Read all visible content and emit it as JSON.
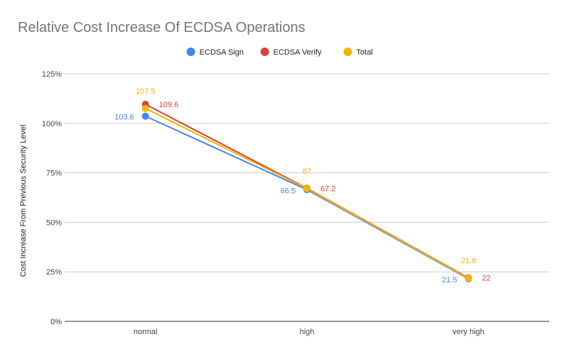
{
  "chart_data": {
    "type": "line",
    "title": "Relative Cost Increase Of ECDSA Operations",
    "xlabel": "",
    "ylabel": "Cost Increase From Previous Security Level",
    "categories": [
      "normal",
      "high",
      "very high"
    ],
    "ylim": [
      0,
      125
    ],
    "yticks": [
      0,
      25,
      50,
      75,
      100,
      125
    ],
    "ytick_labels": [
      "0%",
      "25%",
      "50%",
      "75%",
      "100%",
      "125%"
    ],
    "grid": true,
    "legend_position": "top",
    "series": [
      {
        "name": "ECDSA Sign",
        "color": "#4285F4",
        "values": [
          103.6,
          66.5,
          21.5
        ],
        "labels": [
          "103.6",
          "66.5",
          "21.5"
        ]
      },
      {
        "name": "ECDSA Verify",
        "color": "#DB4437",
        "values": [
          109.6,
          67.2,
          22
        ],
        "labels": [
          "109.6",
          "67.2",
          "22"
        ]
      },
      {
        "name": "Total",
        "color": "#F4B400",
        "values": [
          107.5,
          67,
          21.8
        ],
        "labels": [
          "107.5",
          "67",
          "21.8"
        ]
      }
    ]
  }
}
